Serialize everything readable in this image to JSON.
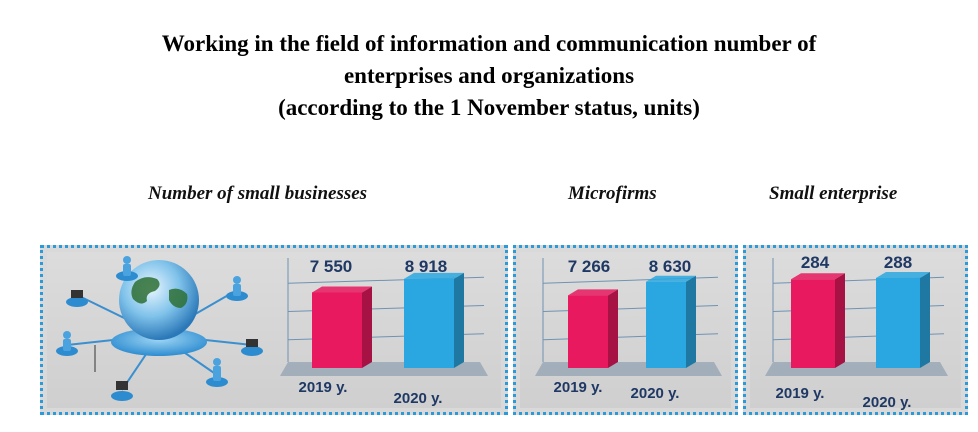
{
  "title": {
    "line1": "Working in the field of information and communication number of",
    "line2": "enterprises and organizations",
    "line3": "(according to the 1 November status, units)"
  },
  "colors": {
    "bar_2019": "#e8195f",
    "bar_2020": "#2aa7e0",
    "border": "#2a9ad8",
    "label": "#1f3864"
  },
  "illustration": {
    "icon": "network-globe-icon"
  },
  "chart_data": [
    {
      "type": "bar",
      "title": "Number of small businesses",
      "categories": [
        "2019 y.",
        "2020 y."
      ],
      "values": [
        7550,
        8918
      ],
      "value_labels": [
        "7 550",
        "8 918"
      ],
      "ylim": [
        0,
        10000
      ]
    },
    {
      "type": "bar",
      "title": "Microfirms",
      "categories": [
        "2019 y.",
        "2020 y."
      ],
      "values": [
        7266,
        8630
      ],
      "value_labels": [
        "7 266",
        "8 630"
      ],
      "ylim": [
        0,
        10000
      ]
    },
    {
      "type": "bar",
      "title": "Small enterprise",
      "categories": [
        "2019 y.",
        "2020 y."
      ],
      "values": [
        284,
        288
      ],
      "value_labels": [
        "284",
        "288"
      ],
      "ylim": [
        0,
        320
      ]
    }
  ]
}
